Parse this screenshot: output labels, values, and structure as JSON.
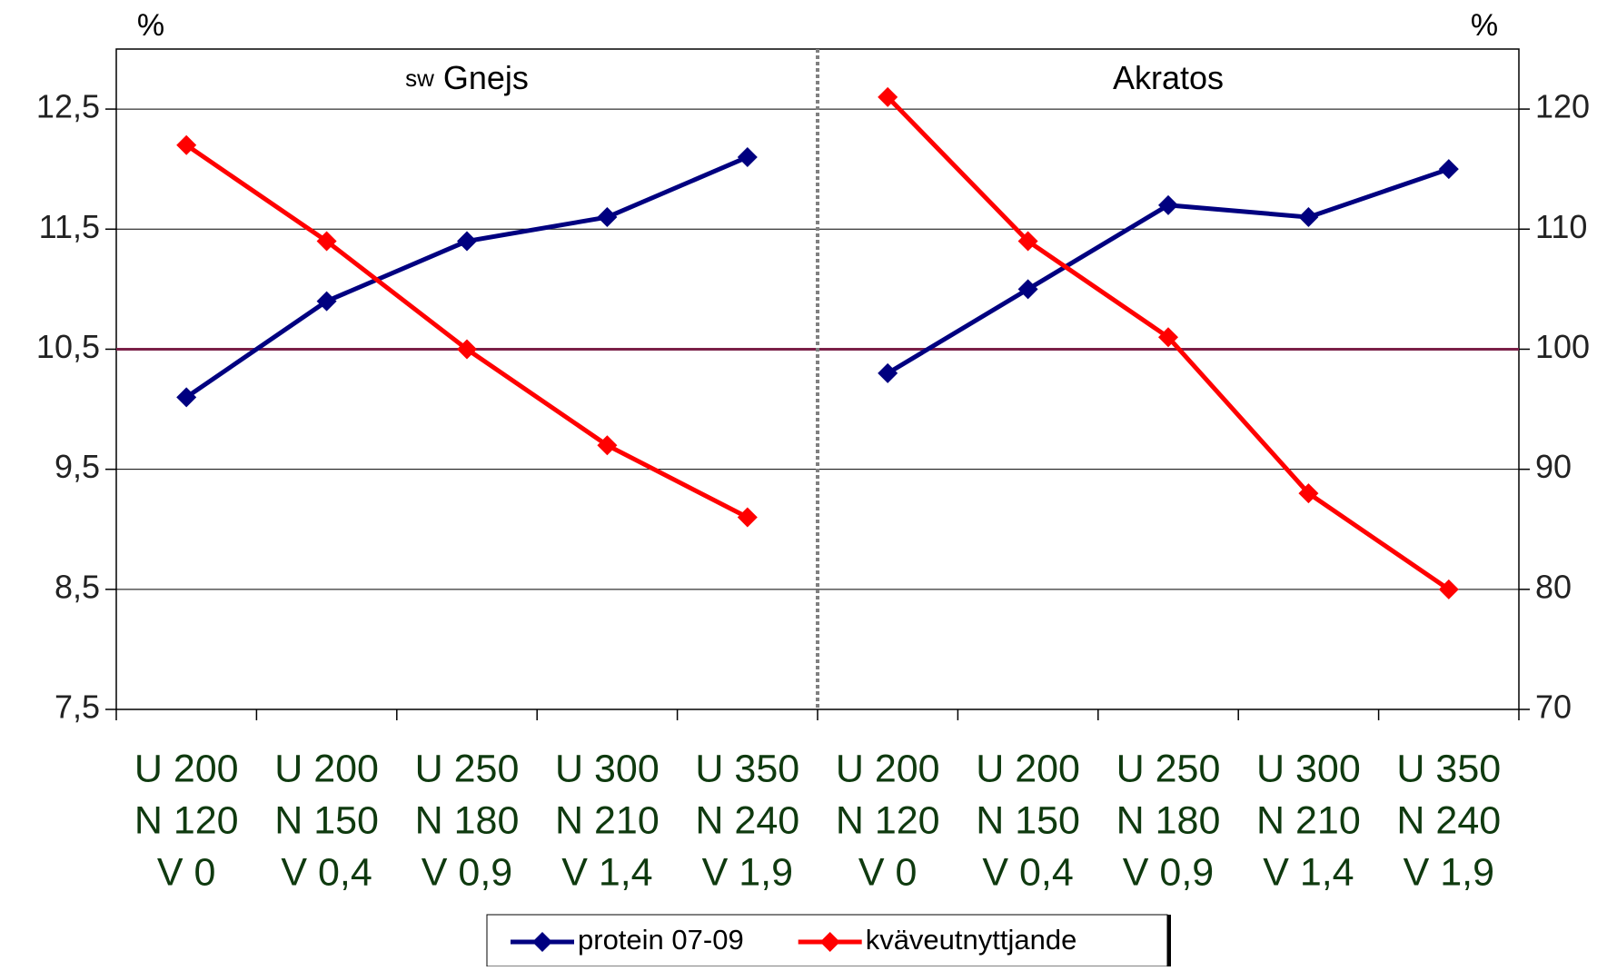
{
  "chart_data": {
    "type": "line",
    "ylabel": "%",
    "y2label": "%",
    "ylim": [
      7.5,
      13
    ],
    "yticks": [
      {
        "value": 7.5,
        "label": "7,5"
      },
      {
        "value": 8.5,
        "label": "8,5"
      },
      {
        "value": 9.5,
        "label": "9,5"
      },
      {
        "value": 10.5,
        "label": "10,5"
      },
      {
        "value": 11.5,
        "label": "11,5"
      },
      {
        "value": 12.5,
        "label": "12,5"
      }
    ],
    "y2lim": [
      70,
      125
    ],
    "y2ticks": [
      70,
      80,
      90,
      100,
      110,
      120
    ],
    "grid": true,
    "reference_line": {
      "value": 10.5,
      "color": "#7a2048"
    },
    "groups": [
      {
        "prefix": "sw",
        "name": "Gnejs",
        "categories": [
          [
            "U 200",
            "N 120",
            "V 0"
          ],
          [
            "U 200",
            "N 150",
            "V 0,4"
          ],
          [
            "U 250",
            "N 180",
            "V 0,9"
          ],
          [
            "U 300",
            "N 210",
            "V 1,4"
          ],
          [
            "U 350",
            "N 240",
            "V 1,9"
          ]
        ]
      },
      {
        "name": "Akratos",
        "categories": [
          [
            "U 200",
            "N 120",
            "V 0"
          ],
          [
            "U 200",
            "N 150",
            "V 0,4"
          ],
          [
            "U 250",
            "N 180",
            "V 0,9"
          ],
          [
            "U 300",
            "N 210",
            "V 1,4"
          ],
          [
            "U 350",
            "N 240",
            "V 1,9"
          ]
        ]
      }
    ],
    "series": [
      {
        "name": "protein 07-09",
        "color": "#000080",
        "values": [
          [
            10.1,
            10.9,
            11.4,
            11.6,
            12.1
          ],
          [
            10.3,
            11.0,
            11.7,
            11.6,
            12.0
          ]
        ]
      },
      {
        "name": "kväveutnyttjande",
        "color": "#ff0000",
        "axis": "y2",
        "values": [
          [
            117,
            109,
            100,
            92,
            86
          ],
          [
            121,
            109,
            101,
            88,
            80
          ]
        ]
      }
    ],
    "legend": "bottom"
  }
}
